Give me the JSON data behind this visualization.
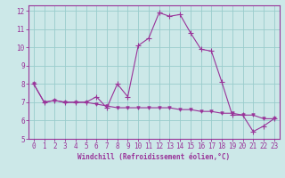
{
  "xlabel": "Windchill (Refroidissement éolien,°C)",
  "background_color": "#cce8e8",
  "grid_color": "#99cccc",
  "line_color": "#993399",
  "xlim": [
    -0.5,
    23.5
  ],
  "ylim": [
    5,
    12.3
  ],
  "yticks": [
    5,
    6,
    7,
    8,
    9,
    10,
    11,
    12
  ],
  "xticks": [
    0,
    1,
    2,
    3,
    4,
    5,
    6,
    7,
    8,
    9,
    10,
    11,
    12,
    13,
    14,
    15,
    16,
    17,
    18,
    19,
    20,
    21,
    22,
    23
  ],
  "series1_x": [
    0,
    1,
    2,
    3,
    4,
    5,
    6,
    7,
    8,
    9,
    10,
    11,
    12,
    13,
    14,
    15,
    16,
    17,
    18,
    19,
    20,
    21,
    22,
    23
  ],
  "series1_y": [
    8.0,
    7.0,
    7.1,
    7.0,
    7.0,
    7.0,
    7.3,
    6.7,
    8.0,
    7.3,
    10.1,
    10.5,
    11.9,
    11.7,
    11.8,
    10.8,
    9.9,
    9.8,
    8.1,
    6.3,
    6.3,
    5.4,
    5.7,
    6.1
  ],
  "series2_x": [
    0,
    1,
    2,
    3,
    4,
    5,
    6,
    7,
    8,
    9,
    10,
    11,
    12,
    13,
    14,
    15,
    16,
    17,
    18,
    19,
    20,
    21,
    22,
    23
  ],
  "series2_y": [
    8.0,
    7.0,
    7.1,
    7.0,
    7.0,
    7.0,
    6.9,
    6.8,
    6.7,
    6.7,
    6.7,
    6.7,
    6.7,
    6.7,
    6.6,
    6.6,
    6.5,
    6.5,
    6.4,
    6.4,
    6.3,
    6.3,
    6.1,
    6.1
  ]
}
